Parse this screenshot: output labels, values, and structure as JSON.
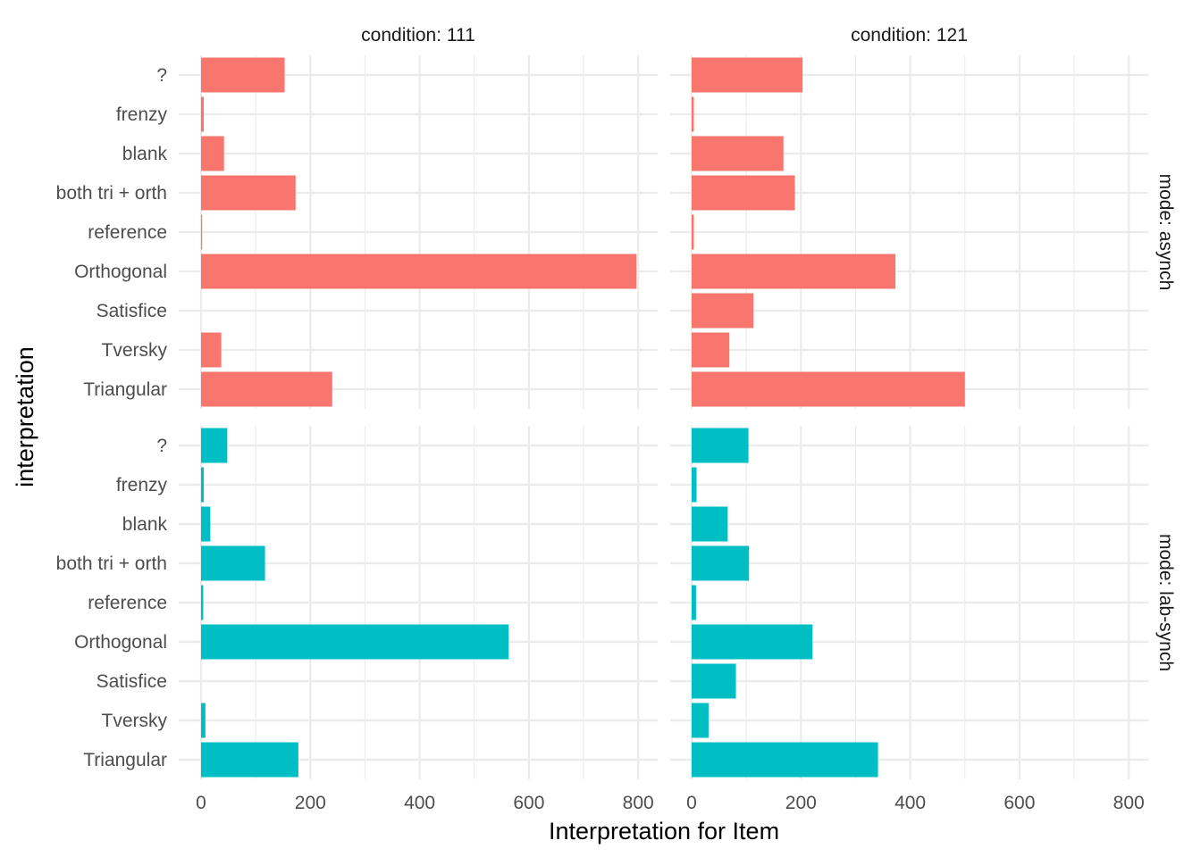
{
  "chart_data": {
    "type": "bar",
    "orientation": "horizontal",
    "facet": "grid",
    "xlabel": "Interpretation for Item",
    "ylabel": "interpretation",
    "xlim": [
      0,
      800
    ],
    "x_ticks": [
      0,
      200,
      400,
      600,
      800
    ],
    "grid": true,
    "categories": [
      "?",
      "frenzy",
      "blank",
      "both tri + orth",
      "reference",
      "Orthogonal",
      "Satisfice",
      "Tversky",
      "Triangular"
    ],
    "columns": [
      {
        "label": "condition: 111"
      },
      {
        "label": "condition: 121"
      }
    ],
    "rows": [
      {
        "label": "mode: asynch",
        "color": "#F8766D"
      },
      {
        "label": "mode: lab-synch",
        "color": "#00BFC4"
      }
    ],
    "panels": [
      {
        "row": 0,
        "col": 0,
        "values": [
          153,
          5,
          42,
          173,
          2,
          797,
          0,
          37,
          240
        ]
      },
      {
        "row": 0,
        "col": 1,
        "values": [
          203,
          4,
          168,
          189,
          4,
          373,
          113,
          69,
          500
        ]
      },
      {
        "row": 1,
        "col": 0,
        "values": [
          48,
          5,
          17,
          117,
          4,
          563,
          0,
          8,
          178
        ]
      },
      {
        "row": 1,
        "col": 1,
        "values": [
          104,
          9,
          66,
          105,
          8,
          221,
          81,
          31,
          341
        ]
      }
    ]
  }
}
